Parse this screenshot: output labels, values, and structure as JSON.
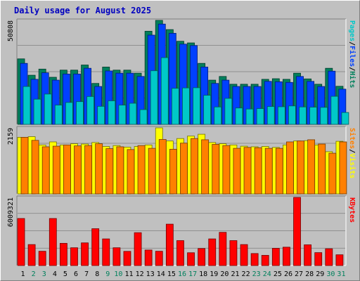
{
  "title": "Daily usage for August 2025",
  "chart_data": {
    "type": "bar",
    "title": "Daily usage for August 2025",
    "days": [
      "1",
      "2",
      "3",
      "4",
      "5",
      "6",
      "7",
      "8",
      "9",
      "10",
      "11",
      "12",
      "13",
      "14",
      "15",
      "16",
      "17",
      "18",
      "19",
      "20",
      "21",
      "22",
      "23",
      "24",
      "25",
      "26",
      "27",
      "28",
      "29",
      "30",
      "31"
    ],
    "weekend_days": [
      2,
      3,
      9,
      10,
      16,
      17,
      23,
      24,
      30,
      31
    ],
    "day_colors": {
      "weekday": "#000000",
      "weekend": "#00805c"
    },
    "panels": [
      {
        "name": "hits",
        "max_label": "50808",
        "max": 50808,
        "side_labels": [
          {
            "text": "Pages",
            "color": "#00c8c8"
          },
          {
            "text": "/",
            "color": "#000000"
          },
          {
            "text": "Files",
            "color": "#0040ff"
          },
          {
            "text": "/",
            "color": "#000000"
          },
          {
            "text": "Hits",
            "color": "#00805c"
          }
        ],
        "series": [
          {
            "name": "Hits",
            "color": "#00805c",
            "values": [
              32000,
              24000,
              27000,
              23000,
              26500,
              26500,
              29000,
              20000,
              28000,
              26500,
              26500,
              25000,
              45500,
              50808,
              46300,
              40600,
              39800,
              29800,
              21600,
              23400,
              19600,
              19600,
              19600,
              22000,
              22300,
              22000,
              25000,
              22200,
              19600,
              27400,
              18600
            ]
          },
          {
            "name": "Files",
            "color": "#0040ff",
            "values": [
              29800,
              22000,
              25200,
              21600,
              24600,
              24600,
              27400,
              18500,
              26100,
              25000,
              25000,
              23400,
              43600,
              49000,
              44500,
              39200,
              38500,
              28000,
              20000,
              21600,
              18500,
              18500,
              18500,
              21000,
              20800,
              20500,
              23400,
              21000,
              18500,
              26000,
              17200
            ]
          },
          {
            "name": "Pages",
            "color": "#00c8c8",
            "values": [
              18500,
              12300,
              14800,
              9400,
              10700,
              11100,
              13600,
              8800,
              11500,
              9400,
              10300,
              7200,
              26200,
              32600,
              17600,
              17800,
              17900,
              14200,
              8500,
              12700,
              8000,
              7500,
              7700,
              8700,
              8600,
              9000,
              8500,
              8400,
              8300,
              13700,
              5800
            ]
          }
        ]
      },
      {
        "name": "visits",
        "max_label": "2159",
        "max": 2159,
        "side_labels": [
          {
            "text": "Sites",
            "color": "#ff8000"
          },
          {
            "text": "/",
            "color": "#000000"
          },
          {
            "text": "Visits",
            "color": "#ffff00"
          }
        ],
        "series": [
          {
            "name": "Visits",
            "color": "#ffff00",
            "values": [
              1850,
              1870,
              1600,
              1700,
              1600,
              1640,
              1630,
              1680,
              1550,
              1580,
              1530,
              1550,
              1600,
              2159,
              1730,
              1810,
              1890,
              1950,
              1680,
              1640,
              1600,
              1560,
              1540,
              1550,
              1520,
              1600,
              1730,
              1740,
              1600,
              1380,
              1720
            ]
          },
          {
            "name": "Sites",
            "color": "#ff8000",
            "values": [
              1850,
              1750,
              1540,
              1560,
              1600,
              1570,
              1580,
              1640,
              1480,
              1540,
              1450,
              1580,
              1490,
              1780,
              1460,
              1660,
              1810,
              1770,
              1620,
              1580,
              1490,
              1520,
              1510,
              1490,
              1490,
              1700,
              1730,
              1770,
              1630,
              1330,
              1700
            ]
          }
        ]
      },
      {
        "name": "kbytes",
        "max_label": "6009321",
        "max": 6009321,
        "side_labels": [
          {
            "text": "KBytes",
            "color": "#ff0000"
          }
        ],
        "series": [
          {
            "name": "KBytes",
            "color": "#ff0000",
            "values": [
              4150000,
              1850000,
              1260000,
              4150000,
              1960000,
              1570000,
              2000000,
              3250000,
              2350000,
              1570000,
              1250000,
              2900000,
              1370000,
              1260000,
              3650000,
              2200000,
              1130000,
              1500000,
              2350000,
              2930000,
              2200000,
              1850000,
              1060000,
              900000,
              1520000,
              1620000,
              6009321,
              1830000,
              1140000,
              1480000,
              950000
            ]
          }
        ]
      }
    ]
  }
}
